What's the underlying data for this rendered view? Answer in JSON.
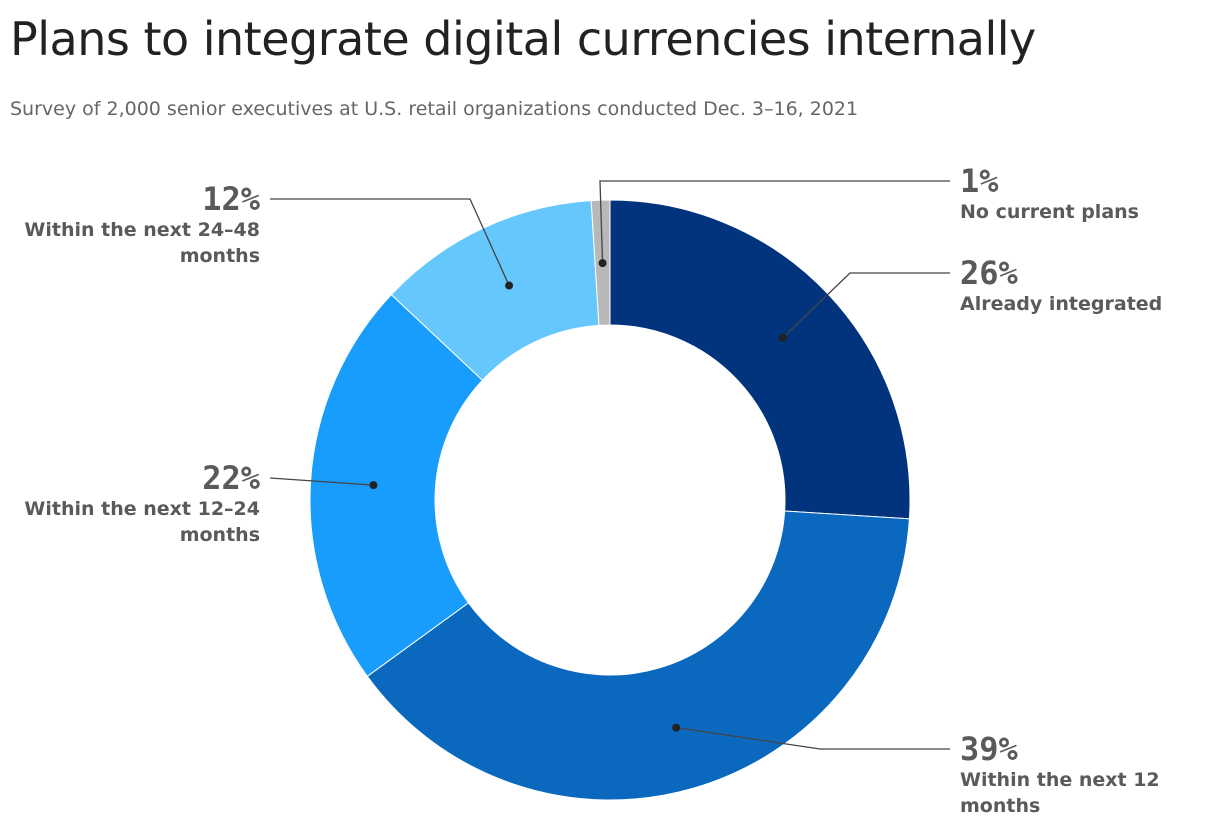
{
  "chart_data": {
    "type": "donut",
    "title": "Plans to integrate digital currencies internally",
    "subtitle": "Survey of 2,000 senior executives at U.S. retail organizations conducted Dec. 3–16, 2021",
    "categories": [
      "Already integrated",
      "Within the next 12 months",
      "Within the next 12–24 months",
      "Within the next 24–48 months",
      "No current plans"
    ],
    "values": [
      26,
      39,
      22,
      12,
      1
    ],
    "value_labels": [
      "26%",
      "39%",
      "22%",
      "12%",
      "1%"
    ],
    "colors": [
      "#02347e",
      "#0b68bf",
      "#189dfd",
      "#66c7fd",
      "#b8b8b8"
    ]
  }
}
